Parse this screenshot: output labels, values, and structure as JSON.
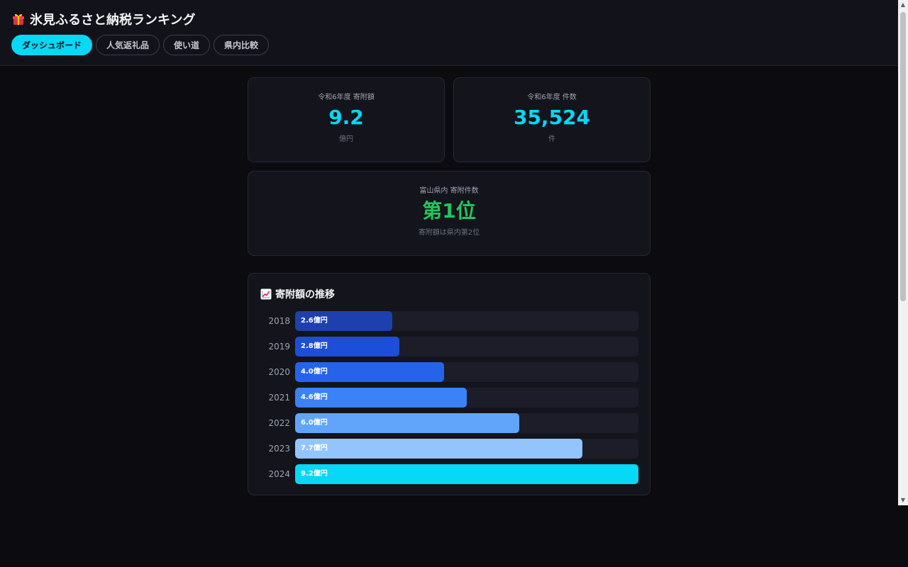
{
  "header": {
    "title": "氷見ふるさと納税ランキング",
    "title_icon": "gift-icon",
    "tabs": [
      {
        "label": "ダッシュボード",
        "active": true
      },
      {
        "label": "人気返礼品",
        "active": false
      },
      {
        "label": "使い道",
        "active": false
      },
      {
        "label": "県内比較",
        "active": false
      }
    ]
  },
  "stats": {
    "amount": {
      "label": "令和6年度 寄附額",
      "value": "9.2",
      "unit": "億円"
    },
    "count": {
      "label": "令和6年度 件数",
      "value": "35,524",
      "unit": "件"
    },
    "rank": {
      "label": "富山県内 寄附件数",
      "value": "第1位",
      "note": "寄附額は県内第2位"
    }
  },
  "colors": {
    "accent": "#06d8f5",
    "rank": "#22c55e"
  },
  "chart": {
    "title": "寄附額の推移",
    "icon": "chart-increasing-icon"
  },
  "chart_data": {
    "type": "bar",
    "orientation": "horizontal",
    "title": "寄附額の推移",
    "categories": [
      "2018",
      "2019",
      "2020",
      "2021",
      "2022",
      "2023",
      "2024"
    ],
    "values": [
      2.6,
      2.8,
      4.0,
      4.6,
      6.0,
      7.7,
      9.2
    ],
    "labels": [
      "2.6億円",
      "2.8億円",
      "4.0億円",
      "4.6億円",
      "6.0億円",
      "7.7億円",
      "9.2億円"
    ],
    "colors": [
      "#1e40af",
      "#1d4ed8",
      "#2563eb",
      "#3b82f6",
      "#60a5fa",
      "#93c5fd",
      "#06d8f5"
    ],
    "unit": "億円",
    "xlim": [
      0,
      9.2
    ]
  }
}
